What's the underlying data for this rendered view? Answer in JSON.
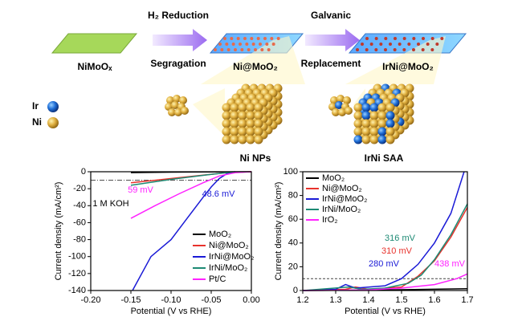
{
  "schematic": {
    "steps": [
      "NiMoOₓ",
      "Ni@MoO₂",
      "IrNi@MoO₂"
    ],
    "arrows": [
      {
        "top": "H₂ Reduction",
        "bottom": "Segragation"
      },
      {
        "top": "Galvanic",
        "bottom": "Replacement"
      }
    ],
    "legend": [
      "Ir",
      "Ni"
    ],
    "particles": [
      "Ni NPs",
      "IrNi SAA"
    ]
  },
  "chart_data": [
    {
      "type": "line",
      "xlabel": "Potential (V vs RHE)",
      "ylabel": "Current density (mA/cm²)",
      "xlim": [
        -0.2,
        0.0
      ],
      "xticks": [
        {
          "value": -0.2,
          "label": "-0.20"
        },
        -0.15,
        {
          "value": -0.1,
          "label": "-0.10"
        },
        -0.05,
        {
          "value": 0.0,
          "label": "0.00"
        }
      ],
      "ylim": [
        -140,
        0
      ],
      "yticks": [
        -140,
        -120,
        -100,
        -80,
        -60,
        -40,
        -20,
        0
      ],
      "ref_line": -10,
      "annotations": [
        {
          "text": "59 mV",
          "color": "#ff22ff"
        },
        {
          "text": "48.6 mV",
          "color": "#1a1ad6"
        },
        {
          "text": "1 M KOH",
          "color": "#000000"
        }
      ],
      "series": [
        {
          "name": "MoO₂",
          "color": "#000000",
          "x": [
            -0.15,
            -0.1,
            -0.05,
            0.0
          ],
          "values": [
            -1,
            -0.5,
            -0.2,
            0
          ]
        },
        {
          "name": "Ni@MoO₂",
          "color": "#e8322c",
          "x": [
            -0.15,
            -0.12,
            -0.09,
            -0.06,
            -0.03,
            0.0
          ],
          "values": [
            -13,
            -10,
            -7,
            -4,
            -1,
            0
          ]
        },
        {
          "name": "IrNi@MoO₂",
          "color": "#1a1ad6",
          "x": [
            -0.148,
            -0.125,
            -0.1,
            -0.08,
            -0.06,
            -0.05,
            -0.04,
            -0.03,
            -0.02
          ],
          "values": [
            -140,
            -100,
            -80,
            -55,
            -30,
            -18,
            -8,
            -2,
            0
          ]
        },
        {
          "name": "IrNi/MoO₂",
          "color": "#1d8a74",
          "x": [
            -0.15,
            -0.1,
            -0.05,
            -0.02
          ],
          "values": [
            -16,
            -9,
            -3,
            0
          ]
        },
        {
          "name": "Pt/C",
          "color": "#ff22ff",
          "x": [
            -0.15,
            -0.12,
            -0.09,
            -0.06,
            -0.04,
            -0.02,
            0.0
          ],
          "values": [
            -55,
            -40,
            -26,
            -13,
            -5,
            -1,
            0
          ]
        }
      ]
    },
    {
      "type": "line",
      "xlabel": "Potential (V vs RHE)",
      "ylabel": "Current density (mA/cm²)",
      "xlim": [
        1.2,
        1.7
      ],
      "xticks": [
        1.2,
        1.3,
        1.4,
        1.5,
        1.6,
        1.7
      ],
      "ylim": [
        0,
        100
      ],
      "yticks": [
        0,
        20,
        40,
        60,
        80,
        100
      ],
      "ref_line": 10,
      "annotations": [
        {
          "text": "316 mV",
          "color": "#1d8a74"
        },
        {
          "text": "310 mV",
          "color": "#e8322c"
        },
        {
          "text": "280 mV",
          "color": "#1a1ad6"
        },
        {
          "text": "438 mV",
          "color": "#ff22ff"
        }
      ],
      "series": [
        {
          "name": "MoO₂",
          "color": "#000000",
          "x": [
            1.2,
            1.45,
            1.7
          ],
          "values": [
            0,
            0.5,
            1.5
          ]
        },
        {
          "name": "Ni@MoO₂",
          "color": "#e8322c",
          "x": [
            1.2,
            1.33,
            1.36,
            1.4,
            1.5,
            1.55,
            1.6,
            1.65,
            1.7
          ],
          "values": [
            0,
            1,
            3,
            1,
            3,
            12,
            25,
            45,
            70
          ]
        },
        {
          "name": "IrNi@MoO₂",
          "color": "#1a1ad6",
          "x": [
            1.2,
            1.3,
            1.33,
            1.36,
            1.45,
            1.5,
            1.55,
            1.6,
            1.65,
            1.69
          ],
          "values": [
            0,
            1,
            5,
            2,
            4,
            10,
            22,
            40,
            65,
            100
          ]
        },
        {
          "name": "IrNi/MoO₂",
          "color": "#1d8a74",
          "x": [
            1.2,
            1.34,
            1.38,
            1.45,
            1.52,
            1.56,
            1.6,
            1.65,
            1.7
          ],
          "values": [
            0,
            3,
            1,
            2,
            6,
            13,
            26,
            47,
            73
          ]
        },
        {
          "name": "IrO₂",
          "color": "#ff22ff",
          "x": [
            1.2,
            1.4,
            1.5,
            1.6,
            1.668,
            1.7
          ],
          "values": [
            0,
            0.5,
            2,
            5,
            10,
            14
          ]
        }
      ]
    }
  ]
}
